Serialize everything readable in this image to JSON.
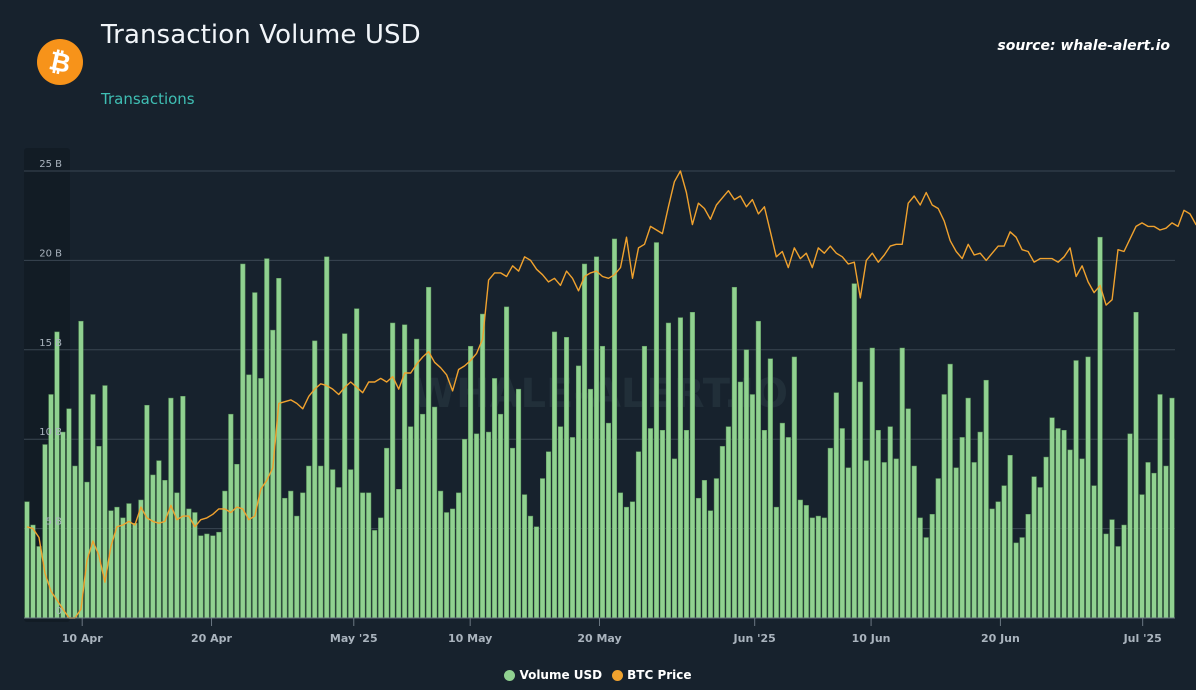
{
  "header": {
    "title": "Transaction Volume USD",
    "subtitle": "Transactions",
    "source": "source: whale-alert.io",
    "watermark": "WHALE-ALERT.IO"
  },
  "logo": {
    "icon": "bitcoin-icon",
    "symbol": "₿",
    "color": "#f7931a"
  },
  "colors": {
    "bar": "#90d190",
    "bar_stroke": "#5e9a5e",
    "line": "#f0a22e",
    "grid": "#3a4652"
  },
  "legend": [
    {
      "label": "Volume USD",
      "color": "#90d190"
    },
    {
      "label": "BTC Price",
      "color": "#f0a22e"
    }
  ],
  "chart_data": {
    "type": "bar",
    "title": "Transaction Volume USD",
    "ylim": [
      0,
      25
    ],
    "y_unit": "B",
    "yticks": [
      "0",
      "5 B",
      "10 B",
      "15 B",
      "20 B",
      "25 B"
    ],
    "xticks": [
      "10 Apr",
      "20 Apr",
      "May '25",
      "10 May",
      "20 May",
      "Jun '25",
      "10 Jun",
      "20 Jun",
      "Jul '25"
    ],
    "x_start": "2025-04-06",
    "x_end": "2025-07-04",
    "series": [
      {
        "name": "Volume USD",
        "type": "bar",
        "values": [
          6.5,
          5.2,
          4.0,
          9.7,
          12.5,
          16.0,
          10.4,
          11.7,
          8.5,
          16.6,
          7.6,
          12.5,
          9.6,
          13.0,
          6.0,
          6.2,
          5.6,
          6.4,
          5.3,
          6.6,
          11.9,
          8.0,
          8.8,
          7.7,
          12.3,
          7.0,
          12.4,
          6.1,
          5.9,
          4.6,
          4.7,
          4.6,
          4.8,
          7.1,
          11.4,
          8.6,
          19.8,
          13.6,
          18.2,
          13.4,
          20.1,
          16.1,
          19.0,
          6.7,
          7.1,
          5.7,
          7.0,
          8.5,
          15.5,
          8.5,
          20.2,
          8.3,
          7.3,
          15.9,
          8.3,
          17.3,
          7.0,
          7.0,
          4.9,
          5.6,
          9.5,
          16.5,
          7.2,
          16.4,
          10.7,
          15.6,
          11.4,
          18.5,
          11.8,
          7.1,
          5.9,
          6.1,
          7.0,
          10.0,
          15.2,
          10.3,
          17.0,
          10.4,
          13.4,
          11.4,
          17.4,
          9.5,
          12.8,
          6.9,
          5.7,
          5.1,
          7.8,
          9.3,
          16.0,
          10.7,
          15.7,
          10.1,
          14.1,
          19.8,
          12.8,
          20.2,
          15.2,
          10.9,
          21.2,
          7.0,
          6.2,
          6.5,
          9.3,
          15.2,
          10.6,
          21.0,
          10.5,
          16.5,
          8.9,
          16.8,
          10.5,
          17.1,
          6.7,
          7.7,
          6.0,
          7.8,
          9.6,
          10.7,
          18.5,
          13.2,
          15.0,
          12.5,
          16.6,
          10.5,
          14.5,
          6.2,
          10.9,
          10.1,
          14.6,
          6.6,
          6.3,
          5.6,
          5.7,
          5.6,
          9.5,
          12.6,
          10.6,
          8.4,
          18.7,
          13.2,
          8.8,
          15.1,
          10.5,
          8.7,
          10.7,
          8.9,
          15.1,
          11.7,
          8.5,
          5.6,
          4.5,
          5.8,
          7.8,
          12.5,
          14.2,
          8.4,
          10.1,
          12.3,
          8.7,
          10.4,
          13.3,
          6.1,
          6.5,
          7.4,
          9.1,
          4.2,
          4.5,
          5.8,
          7.9,
          7.3,
          9.0,
          11.2,
          10.6,
          10.5,
          9.4,
          14.4,
          8.9,
          14.6,
          7.4,
          21.3,
          4.7,
          5.5,
          4.0,
          5.2,
          10.3,
          17.1,
          6.9,
          8.7,
          8.1,
          12.5,
          8.5,
          12.3
        ],
        "color": "#90d190"
      },
      {
        "name": "BTC Price",
        "type": "line",
        "values": [
          5.1,
          5.0,
          4.5,
          2.5,
          1.5,
          1.0,
          0.5,
          0.0,
          -0.5,
          0.5,
          3.2,
          4.3,
          3.5,
          2.0,
          4.0,
          5.1,
          5.2,
          5.4,
          5.2,
          6.2,
          5.6,
          5.4,
          5.3,
          5.4,
          6.3,
          5.5,
          5.7,
          5.7,
          5.1,
          5.5,
          5.6,
          5.8,
          6.1,
          6.1,
          5.9,
          6.2,
          6.1,
          5.5,
          5.7,
          7.2,
          7.7,
          8.4,
          12.0,
          12.1,
          12.2,
          12.0,
          11.7,
          12.4,
          12.8,
          13.1,
          13.0,
          12.8,
          12.5,
          12.9,
          13.2,
          12.9,
          12.6,
          13.2,
          13.2,
          13.4,
          13.2,
          13.5,
          12.8,
          13.7,
          13.7,
          14.2,
          14.6,
          14.9,
          14.3,
          14.0,
          13.6,
          12.7,
          13.9,
          14.1,
          14.4,
          14.8,
          15.6,
          18.9,
          19.3,
          19.3,
          19.1,
          19.7,
          19.4,
          20.2,
          20.0,
          19.5,
          19.2,
          18.8,
          19.0,
          18.6,
          19.4,
          19.0,
          18.3,
          19.1,
          19.3,
          19.4,
          19.1,
          19.0,
          19.2,
          19.6,
          21.3,
          19.0,
          20.7,
          20.9,
          21.9,
          21.7,
          21.5,
          23.0,
          24.4,
          25.0,
          23.8,
          22.0,
          23.2,
          22.9,
          22.3,
          23.1,
          23.5,
          23.9,
          23.4,
          23.6,
          23.0,
          23.4,
          22.6,
          23.0,
          21.6,
          20.2,
          20.5,
          19.6,
          20.7,
          20.1,
          20.4,
          19.6,
          20.7,
          20.4,
          20.8,
          20.4,
          20.2,
          19.8,
          19.9,
          17.9,
          20.0,
          20.4,
          19.9,
          20.3,
          20.8,
          20.9,
          20.9,
          23.2,
          23.6,
          23.1,
          23.8,
          23.1,
          22.9,
          22.2,
          21.1,
          20.5,
          20.1,
          20.9,
          20.3,
          20.4,
          20.0,
          20.4,
          20.8,
          20.8,
          21.6,
          21.3,
          20.6,
          20.5,
          19.9,
          20.1,
          20.1,
          20.1,
          19.9,
          20.2,
          20.7,
          19.1,
          19.7,
          18.8,
          18.2,
          18.6,
          17.5,
          17.8,
          20.6,
          20.5,
          21.2,
          21.9,
          22.1,
          21.9,
          21.9,
          21.7,
          21.8,
          22.1,
          21.9,
          22.8,
          22.6,
          22.0,
          21.8,
          21.2,
          20.7,
          22.0,
          22.8,
          23.4,
          23.5,
          23.5
        ],
        "color": "#f0a22e"
      }
    ],
    "grid": true,
    "legend_position": "bottom-center"
  }
}
